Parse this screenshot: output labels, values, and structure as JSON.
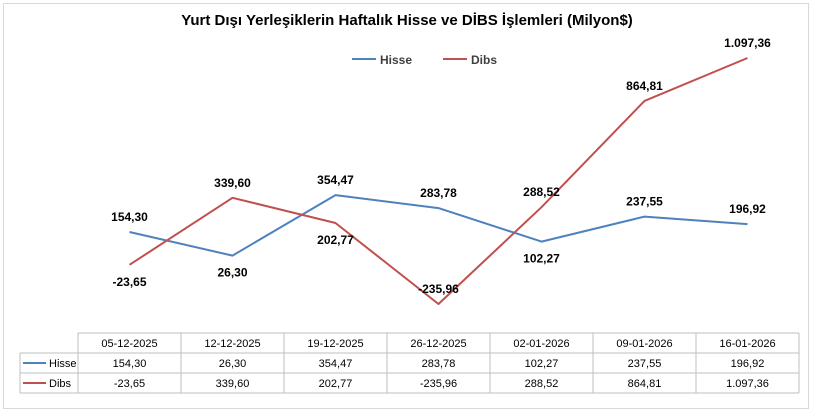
{
  "chart_data": {
    "type": "line",
    "title": "Yurt Dışı Yerleşiklerin Haftalık Hisse ve DİBS İşlemleri (Milyon$)",
    "xlabel": "",
    "ylabel": "",
    "legend_position": "top",
    "gridlines": false,
    "categories": [
      "05-12-2025",
      "12-12-2025",
      "19-12-2025",
      "26-12-2025",
      "02-01-2026",
      "09-01-2026",
      "16-01-2026"
    ],
    "series": [
      {
        "name": "Hisse",
        "color": "#4f81bd",
        "values": [
          154.3,
          26.3,
          354.47,
          283.78,
          102.27,
          237.55,
          196.92
        ],
        "labels": [
          "154,30",
          "26,30",
          "354,47",
          "283,78",
          "102,27",
          "237,55",
          "196,92"
        ]
      },
      {
        "name": "Dibs",
        "color": "#c0504d",
        "values": [
          -23.65,
          339.6,
          202.77,
          -235.96,
          288.52,
          864.81,
          1097.36
        ],
        "labels": [
          "-23,65",
          "339,60",
          "202,77",
          "-235,96",
          "288,52",
          "864,81",
          "1.097,36"
        ]
      }
    ],
    "data_table": true
  }
}
